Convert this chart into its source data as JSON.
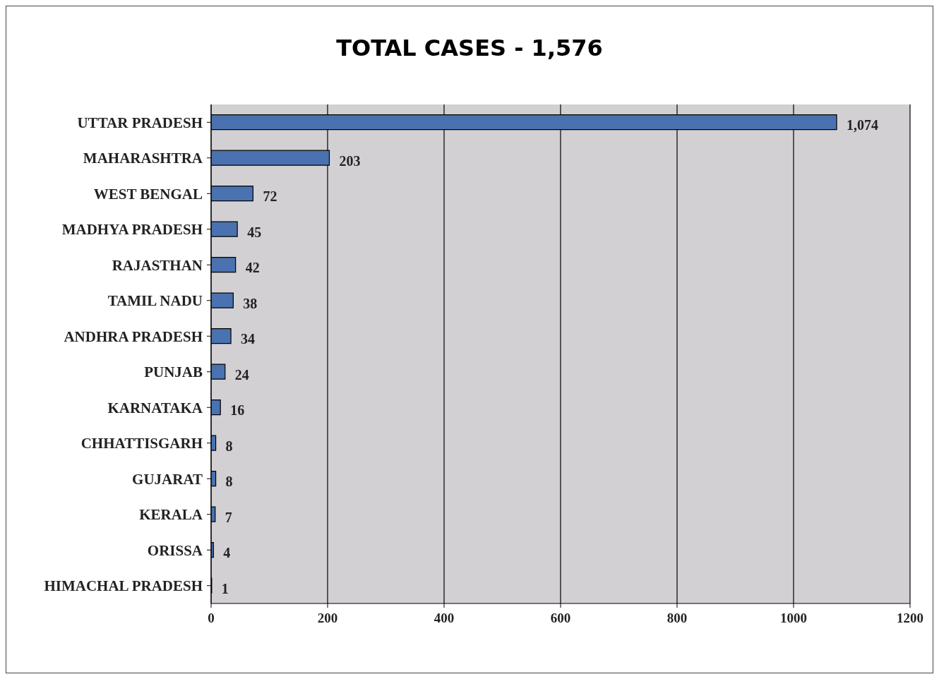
{
  "chart_data": {
    "type": "bar",
    "orientation": "horizontal",
    "title": "TOTAL CASES - 1,576",
    "categories": [
      "UTTAR PRADESH",
      "MAHARASHTRA",
      "WEST BENGAL",
      "MADHYA PRADESH",
      "RAJASTHAN",
      "TAMIL NADU",
      "ANDHRA PRADESH",
      "PUNJAB",
      "KARNATAKA",
      "CHHATTISGARH",
      "GUJARAT",
      "KERALA",
      "ORISSA",
      "HIMACHAL PRADESH"
    ],
    "values": [
      1074,
      203,
      72,
      45,
      42,
      38,
      34,
      24,
      16,
      8,
      8,
      7,
      4,
      1
    ],
    "value_labels": [
      "1,074",
      "203",
      "72",
      "45",
      "42",
      "38",
      "34",
      "24",
      "16",
      "8",
      "8",
      "7",
      "4",
      "1"
    ],
    "color": "#4a72b0",
    "xlim": [
      0,
      1200
    ],
    "xticks": [
      0,
      200,
      400,
      600,
      800,
      1000,
      1200
    ],
    "grid": "x"
  }
}
